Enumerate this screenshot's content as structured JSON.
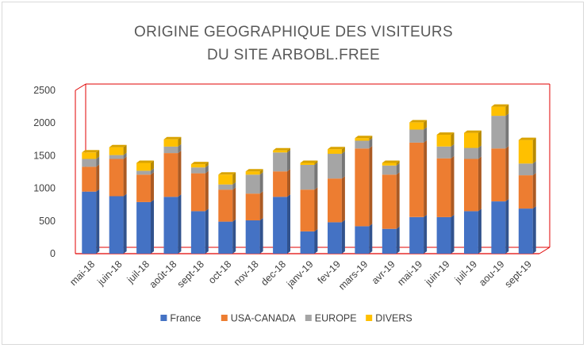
{
  "chart_data": {
    "type": "bar",
    "stacked": true,
    "style": "3d",
    "title_lines": [
      "ORIGINE GEOGRAPHIQUE DES VISITEURS",
      "DU SITE ARBOBL.FREE"
    ],
    "categories": [
      "mai-18",
      "juin-18",
      "juil-18",
      "août-18",
      "sept-18",
      "oct-18",
      "nov-18",
      "dec-18",
      "janv-19",
      "fev-19",
      "mars-19",
      "avr-19",
      "mai-19",
      "juin-19",
      "juil-19",
      "aou-19",
      "sept-19"
    ],
    "series": [
      {
        "name": "France",
        "color": "#4472c4",
        "values": [
          950,
          880,
          790,
          870,
          650,
          490,
          510,
          870,
          340,
          480,
          420,
          380,
          560,
          560,
          650,
          800,
          690
        ]
      },
      {
        "name": "USA-CANADA",
        "color": "#ed7d31",
        "values": [
          380,
          570,
          420,
          670,
          580,
          490,
          410,
          390,
          640,
          670,
          1190,
          830,
          1140,
          900,
          800,
          810,
          510
        ]
      },
      {
        "name": "EUROPE",
        "color": "#a5a5a5",
        "values": [
          120,
          60,
          60,
          100,
          90,
          80,
          290,
          290,
          380,
          380,
          120,
          140,
          200,
          180,
          170,
          500,
          180
        ]
      },
      {
        "name": "DIVERS",
        "color": "#ffc000",
        "values": [
          100,
          120,
          120,
          110,
          50,
          150,
          50,
          30,
          30,
          70,
          40,
          40,
          110,
          180,
          230,
          140,
          360
        ]
      }
    ],
    "yticks": [
      0,
      500,
      1000,
      1500,
      2000,
      2500
    ],
    "ylim": [
      0,
      2500
    ],
    "xlabel": "",
    "ylabel": "",
    "legend_position": "bottom",
    "frame_color": "#e00000"
  }
}
